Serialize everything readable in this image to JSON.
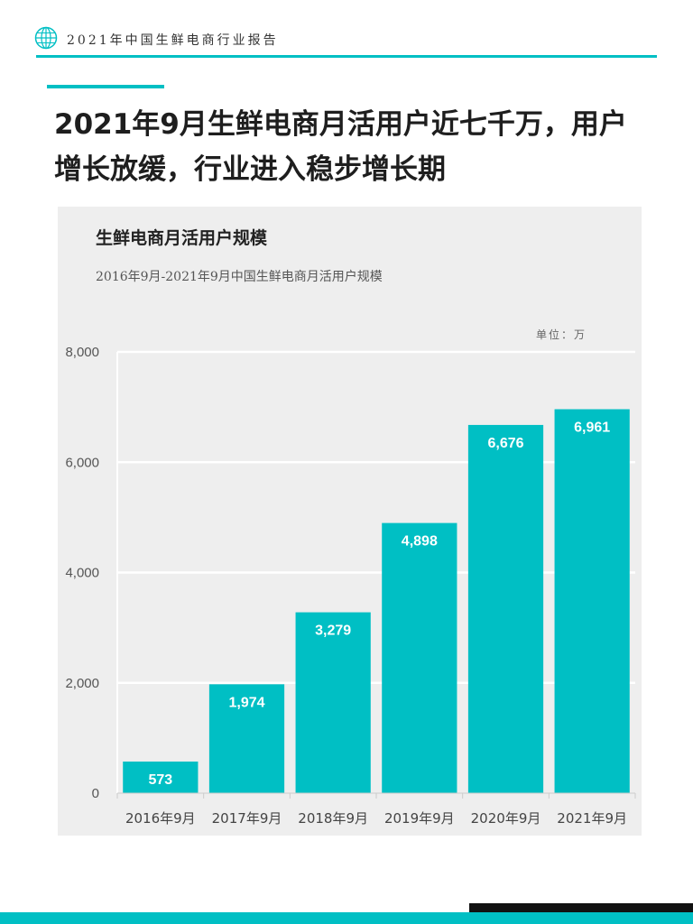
{
  "header": {
    "title": "2021年中国生鲜电商行业报告"
  },
  "headline": "2021年9月生鲜电商月活用户近七千万，用户增长放缓，行业进入稳步增长期",
  "colors": {
    "accent": "#00bfc4",
    "panel": "#eeeeee",
    "bar": "#00bfc4",
    "bar_label": "#ffffff"
  },
  "chart_data": {
    "type": "bar",
    "title": "生鲜电商月活用户规模",
    "subtitle": "2016年9月-2021年9月中国生鲜电商月活用户规模",
    "unit_label": "单位：万",
    "categories": [
      "2016年9月",
      "2017年9月",
      "2018年9月",
      "2019年9月",
      "2020年9月",
      "2021年9月"
    ],
    "values": [
      573,
      1974,
      3279,
      4898,
      6676,
      6961
    ],
    "value_labels": [
      "573",
      "1,974",
      "3,279",
      "4,898",
      "6,676",
      "6,961"
    ],
    "xlabel": "",
    "ylabel": "",
    "ylim": [
      0,
      8000
    ],
    "yticks": [
      0,
      2000,
      4000,
      6000,
      8000
    ],
    "ytick_labels": [
      "0",
      "2,000",
      "4,000",
      "6,000",
      "8,000"
    ],
    "grid": true,
    "legend": "none"
  }
}
